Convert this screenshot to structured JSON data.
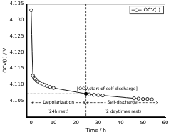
{
  "chart_data": {
    "type": "line",
    "x_label": "Time / h",
    "y_label": "OCV(t) / V",
    "series": [
      {
        "name": "OCV(t)",
        "color": "#000000",
        "marker": "circle",
        "line_style": "solid",
        "x": [
          0,
          0.8,
          1.3,
          1.8,
          2.4,
          3,
          4,
          5,
          6,
          7,
          8.5,
          10,
          24.5,
          26,
          28,
          30,
          32,
          46,
          48,
          50,
          52,
          54
        ],
        "values": [
          4.133,
          4.1128,
          4.1122,
          4.1118,
          4.1114,
          4.111,
          4.1106,
          4.1103,
          4.1099,
          4.1096,
          4.1093,
          4.109,
          4.1072,
          4.107,
          4.1069,
          4.1068,
          4.1067,
          4.1058,
          4.1057,
          4.1056,
          4.1056,
          4.1055
        ]
      }
    ],
    "xlim": [
      -2,
      60
    ],
    "xticks": [
      0,
      10,
      20,
      30,
      40,
      50,
      60
    ],
    "ylim": [
      4.1,
      4.135
    ],
    "yticks": [
      4.105,
      {
        "value": 4.11,
        "label": "4.110"
      },
      4.115,
      {
        "value": 4.12,
        "label": "4.120"
      },
      4.125,
      {
        "value": 4.13,
        "label": "4.130"
      },
      4.135
    ],
    "reference_point": {
      "x": 24.5,
      "y": 4.1072
    },
    "annotations": [
      {
        "text": "[OCV,start of self-discharge]",
        "x": 34,
        "y": 4.1086
      },
      {
        "text": "(24h rest)",
        "x": 12,
        "y": 4.1018
      },
      {
        "text": "(2 daytimes rest)",
        "x": 41,
        "y": 4.1018
      }
    ],
    "spans": [
      {
        "text": "Depolarization",
        "from": 0,
        "to": 24.5,
        "y": 4.1045
      },
      {
        "text": "Self-discharge",
        "from": 24.5,
        "to": 57,
        "y": 4.1045
      }
    ],
    "grid": false,
    "legend": "upper right"
  }
}
